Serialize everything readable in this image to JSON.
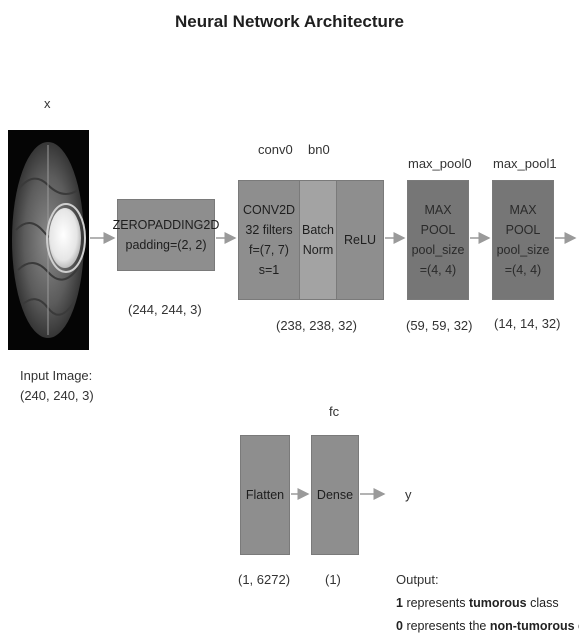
{
  "title": "Neural Network Architecture",
  "input": {
    "symbol": "x",
    "label_line1": "Input Image:",
    "label_line2": "(240, 240, 3)"
  },
  "zeropad": {
    "line1": "ZEROPADDING2D",
    "line2": "padding=(2, 2)",
    "shape": "(244, 244, 3)"
  },
  "conv": {
    "name": "conv0",
    "lines": [
      "CONV2D",
      "32 filters",
      "f=(7, 7)",
      "s=1"
    ]
  },
  "bn": {
    "name": "bn0",
    "lines": [
      "Batch",
      "Norm"
    ]
  },
  "relu": {
    "label": "ReLU"
  },
  "conv_block_shape": "(238, 238, 32)",
  "pool0": {
    "name": "max_pool0",
    "lines": [
      "MAX",
      "POOL",
      "pool_size",
      "=(4, 4)"
    ],
    "shape": "(59, 59, 32)"
  },
  "pool1": {
    "name": "max_pool1",
    "lines": [
      "MAX",
      "POOL",
      "pool_size",
      "=(4, 4)"
    ],
    "shape": "(14, 14, 32)"
  },
  "flatten": {
    "label": "Flatten",
    "shape": "(1, 6272)"
  },
  "fc": {
    "name": "fc",
    "label": "Dense",
    "shape": "(1)"
  },
  "output": {
    "symbol": "y",
    "heading": "Output:",
    "line1": {
      "num": "1",
      "pre": "represents",
      "bold": "tumorous",
      "post": "class"
    },
    "line2": {
      "num": "0",
      "pre": "represents the",
      "bold": "non-tumorous",
      "post": "class"
    }
  }
}
